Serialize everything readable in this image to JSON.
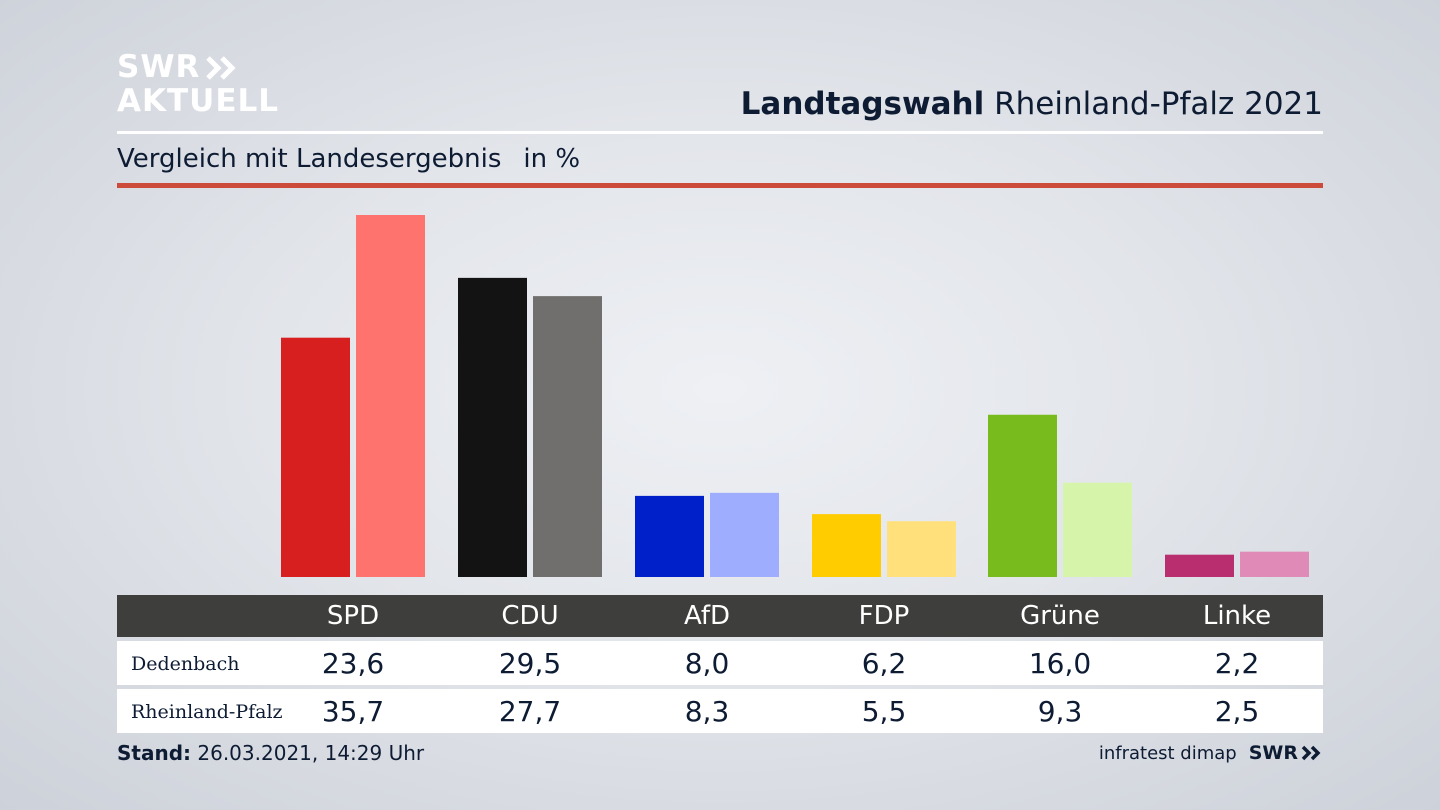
{
  "logo": {
    "line1": "SWR",
    "line2": "AKTUELL"
  },
  "header": {
    "title_bold": "Landtagswahl",
    "title_rest": "Rheinland-Pfalz 2021"
  },
  "subtitle": {
    "text": "Vergleich mit Landesergebnis",
    "unit": "in %"
  },
  "colors": {
    "accent_rule": "#cd4b3a",
    "table_header": "#3e3e3c"
  },
  "chart_data": {
    "type": "bar",
    "categories": [
      "SPD",
      "CDU",
      "AfD",
      "FDP",
      "Grüne",
      "Linke"
    ],
    "series": [
      {
        "name": "Dedenbach",
        "values": [
          23.6,
          29.5,
          8.0,
          6.2,
          16.0,
          2.2
        ],
        "value_labels": [
          "23,6",
          "29,5",
          "8,0",
          "6,2",
          "16,0",
          "2,2"
        ],
        "colors": [
          "#d71f1f",
          "#131313",
          "#0021c9",
          "#ffcc00",
          "#77bb1c",
          "#b92e6e"
        ]
      },
      {
        "name": "Rheinland-Pfalz",
        "values": [
          35.7,
          27.7,
          8.3,
          5.5,
          9.3,
          2.5
        ],
        "value_labels": [
          "35,7",
          "27,7",
          "8,3",
          "5,5",
          "9,3",
          "2,5"
        ],
        "colors": [
          "#ff736e",
          "#706f6e",
          "#9fadff",
          "#ffe07a",
          "#d6f4aa",
          "#e08ab8"
        ]
      }
    ],
    "ylim": [
      0,
      35.7
    ],
    "grid": false,
    "legend": "table-below"
  },
  "footer": {
    "stand_label": "Stand:",
    "stand_value": "26.03.2021, 14:29 Uhr",
    "source": "infratest dimap",
    "brand": "SWR"
  }
}
